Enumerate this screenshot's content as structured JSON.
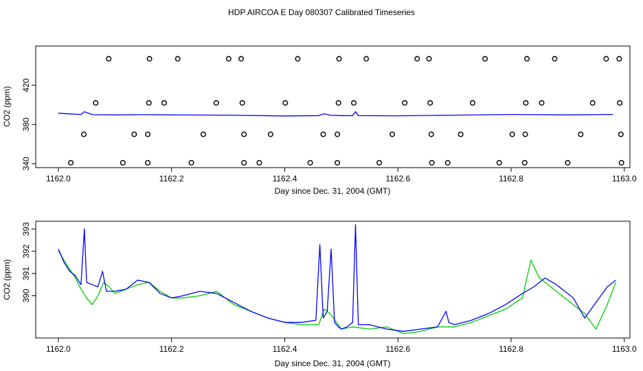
{
  "figure": {
    "title": "HDP AIRCOA E  Day 080307  Calibrated Timeseries"
  },
  "colors": {
    "blue": "#0000ff",
    "green": "#00cc00",
    "black": "#000000"
  },
  "chart_data": [
    {
      "type": "scatter",
      "xlabel": "Day since Dec. 31, 2004 (GMT)",
      "ylabel": "CO2 (ppm)",
      "xlim": [
        1161.96,
        1163.01
      ],
      "ylim": [
        336,
        460
      ],
      "xticks": [
        1162.0,
        1162.2,
        1162.4,
        1162.6,
        1162.8,
        1163.0
      ],
      "xtick_labels": [
        "1162.0",
        "1162.2",
        "1162.4",
        "1162.6",
        "1162.8",
        "1163.0"
      ],
      "yticks": [
        340,
        380,
        420
      ],
      "ytick_labels": [
        "340",
        "380",
        "420"
      ],
      "markers": [
        {
          "x": 1162.089,
          "y": 447
        },
        {
          "x": 1162.161,
          "y": 447
        },
        {
          "x": 1162.211,
          "y": 447
        },
        {
          "x": 1162.301,
          "y": 447
        },
        {
          "x": 1162.323,
          "y": 447
        },
        {
          "x": 1162.423,
          "y": 447
        },
        {
          "x": 1162.496,
          "y": 447
        },
        {
          "x": 1162.544,
          "y": 447
        },
        {
          "x": 1162.634,
          "y": 447
        },
        {
          "x": 1162.655,
          "y": 447
        },
        {
          "x": 1162.754,
          "y": 447
        },
        {
          "x": 1162.828,
          "y": 447
        },
        {
          "x": 1162.877,
          "y": 447
        },
        {
          "x": 1162.968,
          "y": 447
        },
        {
          "x": 1162.991,
          "y": 447
        },
        {
          "x": 1162.066,
          "y": 402
        },
        {
          "x": 1162.16,
          "y": 402
        },
        {
          "x": 1162.187,
          "y": 402
        },
        {
          "x": 1162.279,
          "y": 402
        },
        {
          "x": 1162.325,
          "y": 402
        },
        {
          "x": 1162.401,
          "y": 402
        },
        {
          "x": 1162.495,
          "y": 402
        },
        {
          "x": 1162.522,
          "y": 402
        },
        {
          "x": 1162.612,
          "y": 402
        },
        {
          "x": 1162.657,
          "y": 402
        },
        {
          "x": 1162.732,
          "y": 402
        },
        {
          "x": 1162.826,
          "y": 402
        },
        {
          "x": 1162.854,
          "y": 402
        },
        {
          "x": 1162.944,
          "y": 402
        },
        {
          "x": 1162.992,
          "y": 402
        },
        {
          "x": 1162.045,
          "y": 370
        },
        {
          "x": 1162.134,
          "y": 370
        },
        {
          "x": 1162.158,
          "y": 370
        },
        {
          "x": 1162.256,
          "y": 370
        },
        {
          "x": 1162.328,
          "y": 370
        },
        {
          "x": 1162.375,
          "y": 370
        },
        {
          "x": 1162.468,
          "y": 370
        },
        {
          "x": 1162.493,
          "y": 370
        },
        {
          "x": 1162.59,
          "y": 370
        },
        {
          "x": 1162.659,
          "y": 370
        },
        {
          "x": 1162.711,
          "y": 370
        },
        {
          "x": 1162.802,
          "y": 370
        },
        {
          "x": 1162.825,
          "y": 370
        },
        {
          "x": 1162.923,
          "y": 370
        },
        {
          "x": 1162.994,
          "y": 370
        },
        {
          "x": 1162.022,
          "y": 341
        },
        {
          "x": 1162.114,
          "y": 341
        },
        {
          "x": 1162.158,
          "y": 341
        },
        {
          "x": 1162.235,
          "y": 341
        },
        {
          "x": 1162.328,
          "y": 341
        },
        {
          "x": 1162.355,
          "y": 341
        },
        {
          "x": 1162.445,
          "y": 341
        },
        {
          "x": 1162.493,
          "y": 341
        },
        {
          "x": 1162.567,
          "y": 341
        },
        {
          "x": 1162.66,
          "y": 341
        },
        {
          "x": 1162.688,
          "y": 341
        },
        {
          "x": 1162.779,
          "y": 341
        },
        {
          "x": 1162.824,
          "y": 341
        },
        {
          "x": 1162.9,
          "y": 341
        },
        {
          "x": 1162.995,
          "y": 341
        }
      ],
      "line": {
        "name": "",
        "color": "#0000ff",
        "x": [
          1162.0,
          1162.02,
          1162.04,
          1162.046,
          1162.06,
          1162.1,
          1162.15,
          1162.2,
          1162.3,
          1162.4,
          1162.46,
          1162.47,
          1162.48,
          1162.5,
          1162.52,
          1162.525,
          1162.53,
          1162.6,
          1162.7,
          1162.8,
          1162.9,
          1162.98
        ],
        "y": [
          391.5,
          390.8,
          390.2,
          393.0,
          390.0,
          389.8,
          390.0,
          389.8,
          389.5,
          388.7,
          389.0,
          391.0,
          389.5,
          389.0,
          389.0,
          393.0,
          389.0,
          388.8,
          389.5,
          390.2,
          389.8,
          390.2
        ]
      }
    },
    {
      "type": "line",
      "xlabel": "Day since Dec. 31, 2004 (GMT)",
      "ylabel": "CO2 (ppm)",
      "xlim": [
        1161.96,
        1163.01
      ],
      "ylim": [
        388.1,
        393.35
      ],
      "xticks": [
        1162.0,
        1162.2,
        1162.4,
        1162.6,
        1162.8,
        1163.0
      ],
      "xtick_labels": [
        "1162.0",
        "1162.2",
        "1162.4",
        "1162.6",
        "1162.8",
        "1163.0"
      ],
      "yticks": [
        390,
        391,
        392,
        393
      ],
      "ytick_labels": [
        "390",
        "391",
        "392",
        "393"
      ],
      "series": [
        {
          "color": "#00cc00",
          "x": [
            1162.0,
            1162.01,
            1162.02,
            1162.03,
            1162.04,
            1162.05,
            1162.06,
            1162.07,
            1162.08,
            1162.09,
            1162.1,
            1162.12,
            1162.14,
            1162.16,
            1162.18,
            1162.2,
            1162.22,
            1162.25,
            1162.28,
            1162.31,
            1162.34,
            1162.37,
            1162.4,
            1162.43,
            1162.46,
            1162.47,
            1162.48,
            1162.5,
            1162.52,
            1162.55,
            1162.58,
            1162.61,
            1162.64,
            1162.67,
            1162.7,
            1162.73,
            1162.76,
            1162.79,
            1162.82,
            1162.835,
            1162.85,
            1162.88,
            1162.91,
            1162.93,
            1162.95,
            1162.97,
            1162.985
          ],
          "y": [
            392.0,
            391.6,
            391.2,
            390.8,
            390.3,
            389.9,
            389.6,
            390.0,
            390.6,
            390.4,
            390.1,
            390.3,
            390.5,
            390.6,
            390.2,
            389.9,
            389.9,
            390.0,
            390.2,
            389.6,
            389.3,
            389.0,
            388.8,
            388.7,
            388.7,
            389.4,
            389.2,
            388.5,
            388.6,
            388.5,
            388.6,
            388.3,
            388.4,
            388.6,
            388.6,
            388.8,
            389.1,
            389.4,
            389.9,
            391.6,
            390.8,
            390.2,
            389.6,
            389.2,
            388.5,
            389.6,
            390.6
          ]
        },
        {
          "color": "#0000ff",
          "x": [
            1162.0,
            1162.01,
            1162.02,
            1162.03,
            1162.04,
            1162.046,
            1162.05,
            1162.06,
            1162.07,
            1162.078,
            1162.085,
            1162.1,
            1162.12,
            1162.14,
            1162.16,
            1162.18,
            1162.2,
            1162.22,
            1162.25,
            1162.28,
            1162.31,
            1162.34,
            1162.37,
            1162.4,
            1162.43,
            1162.455,
            1162.462,
            1162.468,
            1162.475,
            1162.482,
            1162.488,
            1162.495,
            1162.5,
            1162.51,
            1162.52,
            1162.525,
            1162.53,
            1162.55,
            1162.58,
            1162.61,
            1162.64,
            1162.67,
            1162.685,
            1162.69,
            1162.7,
            1162.73,
            1162.76,
            1162.79,
            1162.82,
            1162.84,
            1162.86,
            1162.88,
            1162.91,
            1162.93,
            1162.95,
            1162.97,
            1162.985
          ],
          "y": [
            392.1,
            391.5,
            391.1,
            390.9,
            390.5,
            393.0,
            390.6,
            390.5,
            390.4,
            391.1,
            390.2,
            390.2,
            390.3,
            390.7,
            390.6,
            390.1,
            389.9,
            390.0,
            390.2,
            390.1,
            389.7,
            389.3,
            389.0,
            388.8,
            388.8,
            388.9,
            392.3,
            389.0,
            389.3,
            392.1,
            388.8,
            388.6,
            388.5,
            388.6,
            388.8,
            393.2,
            388.7,
            388.7,
            388.5,
            388.4,
            388.5,
            388.6,
            389.3,
            388.8,
            388.7,
            388.9,
            389.2,
            389.6,
            390.1,
            390.4,
            390.8,
            390.5,
            389.9,
            389.0,
            389.7,
            390.4,
            390.7
          ]
        }
      ]
    }
  ]
}
